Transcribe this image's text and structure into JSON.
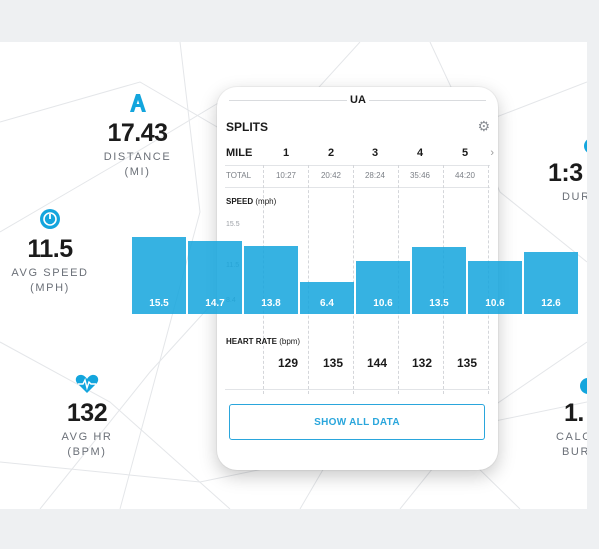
{
  "stats": {
    "distance": {
      "value": "17.43",
      "label_line1": "DISTANCE",
      "label_line2": "(MI)",
      "icon": "distance-icon"
    },
    "duration": {
      "value": "1:3",
      "label_line1": "DUR",
      "icon": "duration-icon"
    },
    "avg_speed": {
      "value": "11.5",
      "label_line1": "AVG SPEED",
      "label_line2": "(MPH)",
      "icon": "speedometer-icon"
    },
    "avg_hr": {
      "value": "132",
      "label_line1": "AVG HR",
      "label_line2": "(BPM)",
      "icon": "heart-rate-icon"
    },
    "calories": {
      "value": "1.",
      "label_line1": "CALO",
      "label_line2": "BUR",
      "icon": "calories-icon"
    }
  },
  "card": {
    "logo": "UA",
    "title": "SPLITS",
    "mile_header": "MILE",
    "total_label": "TOTAL",
    "miles": [
      "1",
      "2",
      "3",
      "4",
      "5"
    ],
    "times": [
      "10:27",
      "20:42",
      "28:24",
      "35:46",
      "44:20"
    ],
    "speed_label": "SPEED",
    "speed_unit": "(mph)",
    "speed_ticks": [
      "15.5",
      "11.5",
      "8.4"
    ],
    "hr_label": "HEART RATE",
    "hr_unit": "(bpm)",
    "heart_rates": [
      "129",
      "135",
      "144",
      "132",
      "135"
    ],
    "button_label": "SHOW ALL DATA"
  },
  "splits_bars": {
    "values": [
      15.5,
      14.7,
      13.8,
      6.4,
      10.6,
      13.5,
      10.6,
      12.6
    ],
    "labels": [
      "15.5",
      "14.7",
      "13.8",
      "6.4",
      "10.6",
      "13.5",
      "10.6",
      "12.6"
    ]
  },
  "colors": {
    "accent": "#13a5dd",
    "text": "#1b1b1b",
    "muted": "#6b7078"
  }
}
